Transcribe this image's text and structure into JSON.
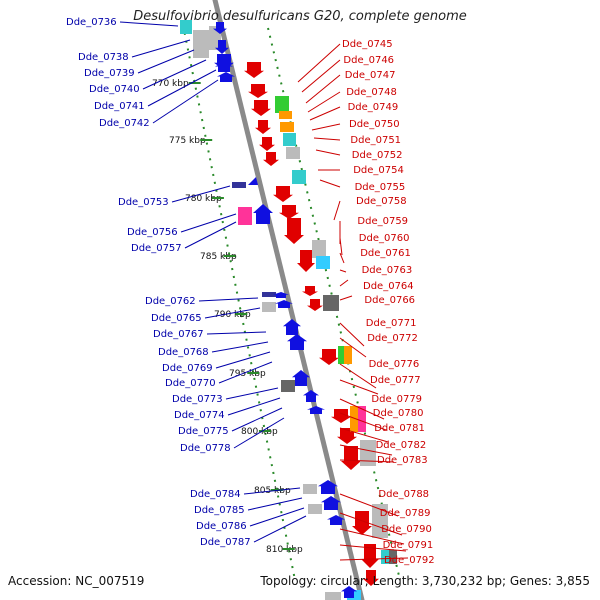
{
  "title": "Desulfovibrio desulfuricans G20, complete genome",
  "footer": {
    "accession": "Accession: NC_007519",
    "topology": "Topology: circular; Length: 3,730,232 bp; Genes: 3,855"
  },
  "colors": {
    "strand_plus": "#e00000",
    "strand_minus": "#1010e0",
    "backbone": "#8a8a8a",
    "tick": "#2a8a2a",
    "label_plus": "#cc0000",
    "label_minus": "#0000aa"
  },
  "scale_labels": [
    "770 kbp",
    "775 kbp",
    "780 kbp",
    "785 kbp",
    "790 kbp",
    "795 kbp",
    "800 kbp",
    "805 kbp",
    "810 kbp"
  ],
  "plus_genes": [
    "Dde_0745",
    "Dde_0746",
    "Dde_0747",
    "Dde_0748",
    "Dde_0749",
    "Dde_0750",
    "Dde_0751",
    "Dde_0752",
    "Dde_0754",
    "Dde_0755",
    "Dde_0758",
    "Dde_0759",
    "Dde_0760",
    "Dde_0761",
    "Dde_0763",
    "Dde_0764",
    "Dde_0766",
    "Dde_0771",
    "Dde_0772",
    "Dde_0776",
    "Dde_0777",
    "Dde_0779",
    "Dde_0780",
    "Dde_0781",
    "Dde_0782",
    "Dde_0783",
    "Dde_0788",
    "Dde_0789",
    "Dde_0790",
    "Dde_0791",
    "Dde_0792"
  ],
  "minus_genes": [
    "Dde_0736",
    "Dde_0738",
    "Dde_0739",
    "Dde_0740",
    "Dde_0741",
    "Dde_0742",
    "Dde_0753",
    "Dde_0756",
    "Dde_0757",
    "Dde_0762",
    "Dde_0765",
    "Dde_0767",
    "Dde_0768",
    "Dde_0769",
    "Dde_0770",
    "Dde_0773",
    "Dde_0774",
    "Dde_0775",
    "Dde_0778",
    "Dde_0784",
    "Dde_0785",
    "Dde_0786",
    "Dde_0787"
  ]
}
